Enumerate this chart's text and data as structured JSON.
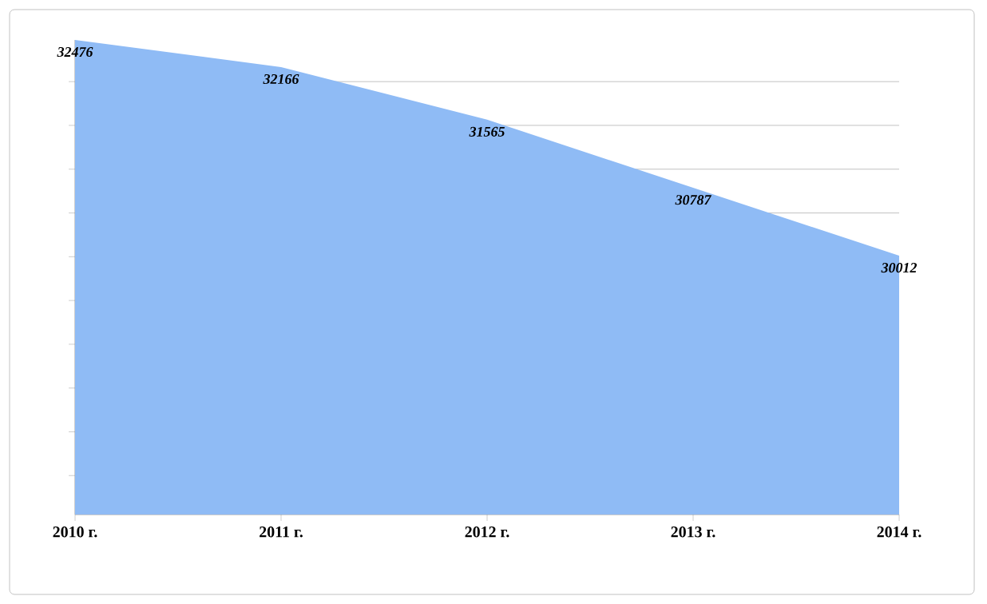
{
  "chart_data": {
    "type": "area",
    "categories": [
      "2010 г.",
      "2011 г.",
      "2012 г.",
      "2013 г.",
      "2014 г."
    ],
    "values": [
      32476,
      32166,
      31565,
      30787,
      30012
    ],
    "color": "#8fbbf5",
    "data_labels": true,
    "tick_labels": "x",
    "grid": "y"
  }
}
